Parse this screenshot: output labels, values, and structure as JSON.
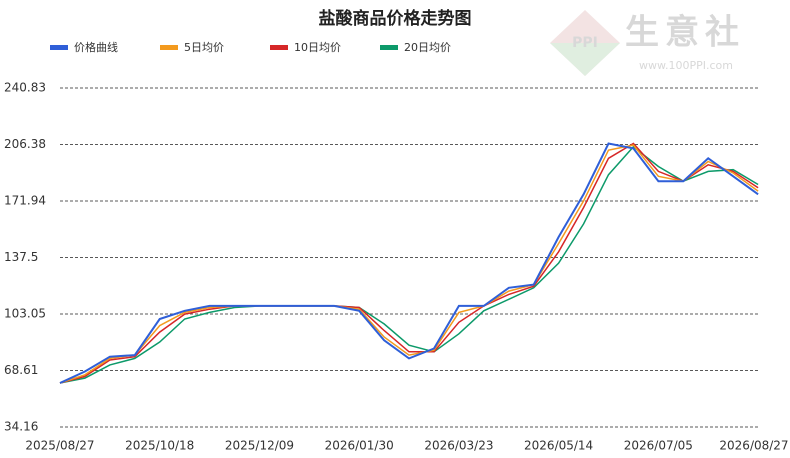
{
  "chart_data": {
    "type": "line",
    "title": "盐酸商品价格走势图",
    "watermark": {
      "logo": "PPI",
      "brand": "生意社",
      "url": "www.100PPI.com"
    },
    "x": [
      "2025/08/27",
      "2025/09/09",
      "2025/09/22",
      "2025/10/05",
      "2025/10/18",
      "2025/10/31",
      "2025/11/13",
      "2025/11/26",
      "2025/12/09",
      "2025/12/22",
      "2026/01/04",
      "2026/01/17",
      "2026/01/30",
      "2026/02/12",
      "2026/02/25",
      "2026/03/10",
      "2026/03/23",
      "2026/04/05",
      "2026/04/18",
      "2026/05/01",
      "2026/05/14",
      "2026/05/27",
      "2026/06/09",
      "2026/06/22",
      "2026/07/05",
      "2026/07/18",
      "2026/07/31",
      "2026/08/13",
      "2026/08/26"
    ],
    "series": [
      {
        "name": "价格曲线",
        "color": "#2f5fd8",
        "values": [
          61,
          68,
          77,
          78,
          100,
          105,
          108,
          108,
          108,
          108,
          108,
          108,
          105,
          87,
          76,
          82,
          108,
          108,
          119,
          121,
          150,
          176,
          207,
          204,
          184,
          184,
          198,
          187,
          176
        ]
      },
      {
        "name": "5日均价",
        "color": "#f39a1e",
        "values": [
          61,
          66,
          76,
          78,
          96,
          104,
          107,
          108,
          108,
          108,
          108,
          108,
          106,
          89,
          78,
          81,
          104,
          108,
          117,
          121,
          146,
          172,
          203,
          206,
          187,
          184,
          196,
          189,
          178
        ]
      },
      {
        "name": "10日均价",
        "color": "#d62728",
        "values": [
          61,
          65,
          75,
          77,
          92,
          103,
          106,
          108,
          108,
          108,
          108,
          108,
          107,
          93,
          80,
          80,
          98,
          108,
          115,
          120,
          141,
          168,
          198,
          207,
          190,
          184,
          194,
          190,
          180
        ]
      },
      {
        "name": "20日均价",
        "color": "#0d9a6a",
        "values": [
          61,
          64,
          72,
          76,
          86,
          100,
          104,
          107,
          108,
          108,
          108,
          108,
          107,
          97,
          84,
          80,
          91,
          105,
          112,
          119,
          134,
          158,
          188,
          205,
          193,
          184,
          190,
          191,
          182
        ]
      }
    ],
    "xlim": [
      "2025/08/27",
      "2026/08/27"
    ],
    "xticks": [
      "2025/08/27",
      "2025/10/18",
      "2025/12/09",
      "2026/01/30",
      "2026/03/23",
      "2026/05/14",
      "2026/07/05",
      "2026/08/27"
    ],
    "ylim": [
      34.16,
      240.83
    ],
    "yticks": [
      34.16,
      68.61,
      103.05,
      137.5,
      171.94,
      206.38,
      240.83
    ],
    "grid": true
  }
}
